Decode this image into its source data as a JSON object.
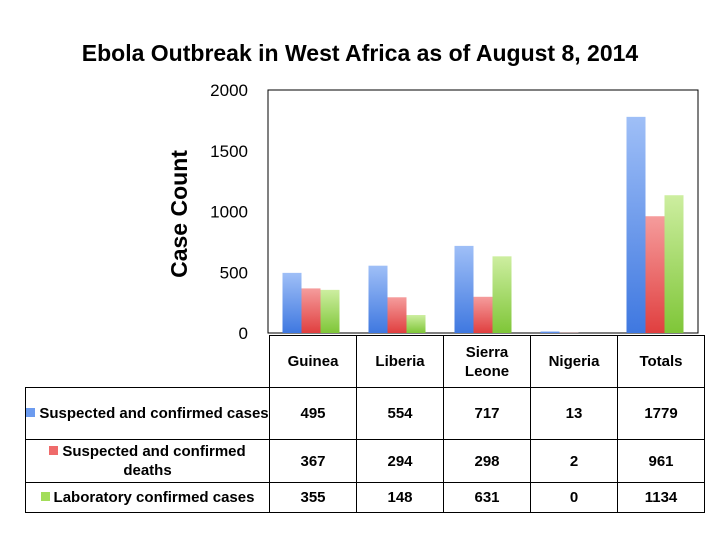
{
  "chart_data": {
    "type": "bar",
    "title": "Ebola Outbreak in West Africa as of August 8, 2014",
    "xlabel": "",
    "ylabel": "Case Count",
    "ylim": [
      0,
      2000
    ],
    "yticks": [
      0,
      500,
      1000,
      1500,
      2000
    ],
    "categories": [
      "Guinea",
      "Liberia",
      "Sierra Leone",
      "Nigeria",
      "Totals"
    ],
    "series": [
      {
        "name": "Suspected and confirmed cases",
        "color": "#6c9bef",
        "values": [
          495,
          554,
          717,
          13,
          1779
        ]
      },
      {
        "name": "Suspected and confirmed deaths",
        "color": "#ef6b6b",
        "values": [
          367,
          294,
          298,
          2,
          961
        ]
      },
      {
        "name": "Laboratory confirmed cases",
        "color": "#a3dd5a",
        "values": [
          355,
          148,
          631,
          0,
          1134
        ]
      }
    ],
    "grid": false,
    "legend": "data table below chart"
  }
}
